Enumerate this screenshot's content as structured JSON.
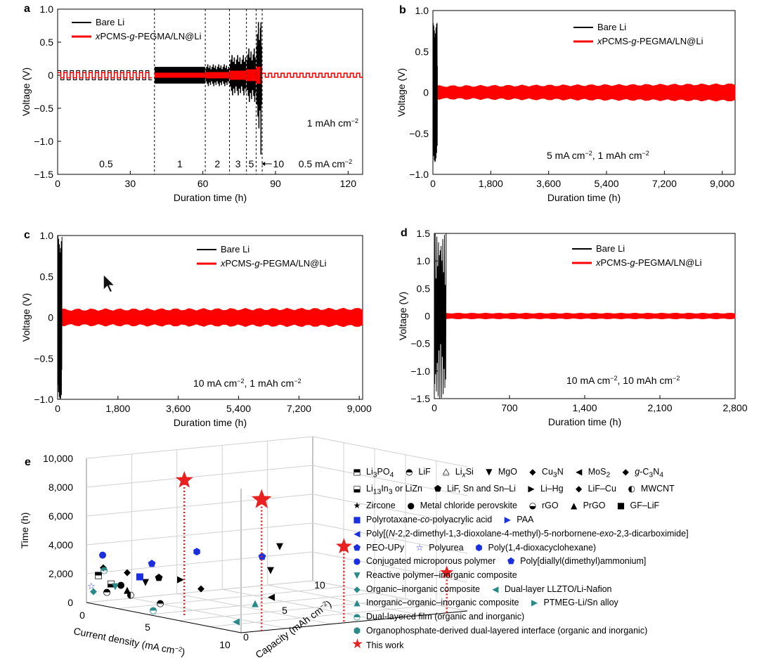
{
  "figure": {
    "panels": [
      "a",
      "b",
      "c",
      "d",
      "e"
    ],
    "legend_bare": "Bare Li",
    "legend_prefix": "x",
    "legend_mid1": "PCMS-",
    "legend_g": "g",
    "legend_mid2": "-PEGMA/LN@Li",
    "xlabel": "Duration time (h)",
    "ylabel": "Voltage (V)",
    "colors": {
      "bare": "#000000",
      "modified": "#ff0000",
      "star": "#e8201f",
      "blue": "#1a2fe0",
      "teal": "#2a8a8a"
    }
  },
  "chart_data": [
    {
      "panel": "a",
      "type": "line",
      "xlim": [
        0,
        126
      ],
      "ylim": [
        -1.5,
        1.0
      ],
      "xticks": [
        "0",
        "30",
        "60",
        "90",
        "120"
      ],
      "yticks": [
        "−1.5",
        "−1.0",
        "−0.5",
        "0",
        "0.5",
        "1.0"
      ],
      "segments": [
        {
          "current": "0.5",
          "x": [
            0,
            40
          ]
        },
        {
          "current": "1",
          "x": [
            40,
            61
          ]
        },
        {
          "current": "2",
          "x": [
            61,
            71
          ]
        },
        {
          "current": "3",
          "x": [
            71,
            78
          ]
        },
        {
          "current": "5",
          "x": [
            78,
            82
          ]
        },
        {
          "current": "10",
          "x": [
            82,
            84.5
          ]
        },
        {
          "current": "0.5 mA cm−2",
          "x": [
            84.5,
            126
          ]
        }
      ],
      "annotation_capacity": "1 mAh cm−2",
      "series": [
        {
          "name": "Bare Li",
          "amplitude_by_segment": [
            0.07,
            0.12,
            0.16,
            0.3,
            0.4,
            0.8,
            0.03
          ]
        },
        {
          "name": "xPCMS-g-PEGMA/LN@Li",
          "amplitude_by_segment": [
            0.04,
            0.03,
            0.04,
            0.06,
            0.08,
            0.12,
            0.03
          ]
        }
      ]
    },
    {
      "panel": "b",
      "type": "line",
      "xlim": [
        0,
        9400
      ],
      "ylim": [
        -1.0,
        1.0
      ],
      "xticks": [
        "0",
        "1,800",
        "3,600",
        "5,400",
        "7,200",
        "9,000"
      ],
      "yticks": [
        "−1.0",
        "−0.5",
        "0",
        "0.5",
        "1.0"
      ],
      "condition": "5 mA cm−2, 1 mAh cm−2",
      "series": [
        {
          "name": "Bare Li",
          "x_end": 140,
          "peak": 0.85
        },
        {
          "name": "xPCMS-g-PEGMA/LN@Li",
          "x_end": 9400,
          "amplitude": 0.08
        }
      ]
    },
    {
      "panel": "c",
      "type": "line",
      "xlim": [
        0,
        9100
      ],
      "ylim": [
        -1.0,
        1.0
      ],
      "xticks": [
        "0",
        "1,800",
        "3,600",
        "5,400",
        "7,200",
        "9,000"
      ],
      "yticks": [
        "−1.0",
        "−0.5",
        "0",
        "0.5",
        "1.0"
      ],
      "condition": "10 mA cm−2, 1 mAh cm−2",
      "series": [
        {
          "name": "Bare Li",
          "x_end": 130,
          "peak": 1.0
        },
        {
          "name": "xPCMS-g-PEGMA/LN@Li",
          "x_end": 9100,
          "amplitude": 0.1
        }
      ]
    },
    {
      "panel": "d",
      "type": "line",
      "xlim": [
        0,
        2800
      ],
      "ylim": [
        -1.5,
        1.5
      ],
      "xticks": [
        "0",
        "700",
        "1,400",
        "2,100",
        "2,800"
      ],
      "yticks": [
        "−1.5",
        "−1.0",
        "−0.5",
        "0",
        "0.5",
        "1.0",
        "1.5"
      ],
      "condition": "10 mA cm−2, 10 mAh cm−2",
      "series": [
        {
          "name": "Bare Li",
          "x_end": 110,
          "peak": 1.5
        },
        {
          "name": "xPCMS-g-PEGMA/LN@Li",
          "x_end": 2800,
          "amplitude": 0.05
        }
      ]
    },
    {
      "panel": "e",
      "type": "scatter",
      "xlabel": "Current density (mA cm−2)",
      "ylabel": "Time (h)",
      "zlabel": "Capacity (mAh cm−2)",
      "yticks": [
        "0",
        "2,000",
        "4,000",
        "6,000",
        "8,000",
        "10,000"
      ],
      "xticks": [
        "0",
        "5",
        "10"
      ],
      "zticks": [
        "0",
        "5",
        "10"
      ],
      "this_work": [
        {
          "current": 5,
          "capacity": 1,
          "time": 9400
        },
        {
          "current": 10,
          "capacity": 1,
          "time": 9100
        },
        {
          "current": 10,
          "capacity": 5,
          "time": 5300
        },
        {
          "current": 10,
          "capacity": 10,
          "time": 2800
        }
      ]
    }
  ],
  "legend_e": {
    "rows": [
      [
        {
          "mk": "⬒",
          "t": "Li3PO4"
        },
        {
          "mk": "◓",
          "t": "LiF"
        },
        {
          "mk": "⧋",
          "t": "LixSi"
        },
        {
          "mk": "▼",
          "t": "MgO"
        },
        {
          "mk": "◆",
          "t": "Cu3N"
        },
        {
          "mk": "◀",
          "t": "MoS2"
        },
        {
          "mk": "◆",
          "t": "g-C3N4"
        }
      ],
      [
        {
          "mk": "⬓",
          "t": "Li13In3 or LiZn"
        },
        {
          "mk": "⬟",
          "t": "LiF, Sn and Sn–Li"
        },
        {
          "mk": "▶",
          "t": "Li–Hg"
        },
        {
          "mk": "◆",
          "t": "LiF–Cu"
        },
        {
          "mk": "◐",
          "t": "MWCNT"
        }
      ],
      [
        {
          "mk": "★",
          "t": "Zircone"
        },
        {
          "mk": "●",
          "t": "Metal chloride perovskite"
        },
        {
          "mk": "◒",
          "t": "rGO"
        },
        {
          "mk": "▲",
          "t": "PrGO"
        },
        {
          "mk": "■",
          "t": "GF–LiF"
        }
      ],
      [
        {
          "mk": "■",
          "t": "Polyrotaxane-co-polyacrylic acid",
          "c": "blue"
        },
        {
          "mk": "▶",
          "t": "PAA",
          "c": "blue"
        }
      ],
      [
        {
          "mk": "◀",
          "t": "Poly[(N-2,2-dimethyl-1,3-dioxolane-4-methyl)-5-norbornene-exo-2,3-dicarboximide]",
          "c": "blue"
        }
      ],
      [
        {
          "mk": "⬟",
          "t": "PEO-UPy",
          "c": "blue"
        },
        {
          "mk": "☆",
          "t": "Polyurea",
          "c": "blue"
        },
        {
          "mk": "⬢",
          "t": "Poly(1,4-dioxacyclohexane)",
          "c": "blue"
        }
      ],
      [
        {
          "mk": "●",
          "t": "Conjugated microporous polymer",
          "c": "blue"
        },
        {
          "mk": "⬟",
          "t": "Poly[diallyl(dimethyl)ammonium]",
          "c": "blue"
        }
      ],
      [
        {
          "mk": "▼",
          "t": "Reactive polymer–inorganic composite",
          "c": "teal"
        }
      ],
      [
        {
          "mk": "◆",
          "t": "Organic–inorganic composite",
          "c": "teal"
        },
        {
          "mk": "◀",
          "t": "Dual-layer LLZTO/Li-Nafion",
          "c": "teal"
        }
      ],
      [
        {
          "mk": "▲",
          "t": "Inorganic–organic–inorganic composite",
          "c": "teal"
        },
        {
          "mk": "▶",
          "t": "PTMEG-Li/Sn alloy",
          "c": "teal"
        }
      ],
      [
        {
          "mk": "◓",
          "t": "Dual-layered film (organic and inorganic)",
          "c": "teal"
        }
      ],
      [
        {
          "mk": "⬢",
          "t": "Organophosphate-derived dual-layered interface (organic and inorganic)",
          "c": "teal"
        }
      ],
      [
        {
          "mk": "★",
          "t": "This work",
          "c": "star"
        }
      ]
    ]
  }
}
